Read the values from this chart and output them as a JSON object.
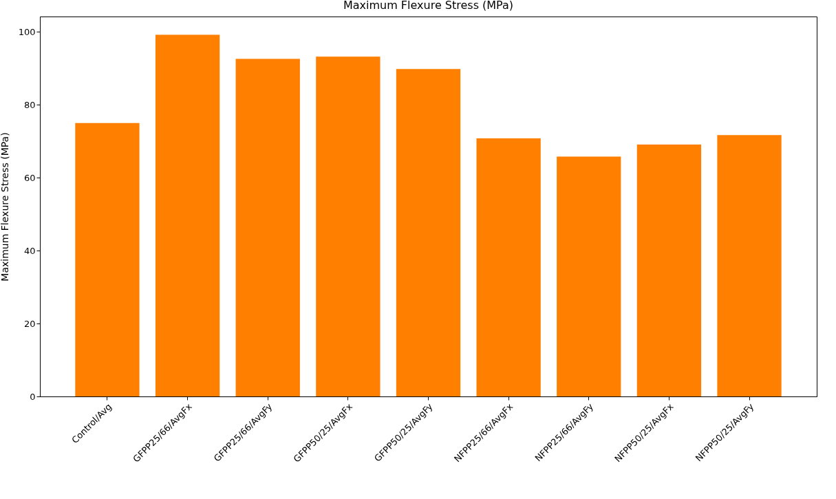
{
  "chart_data": {
    "type": "bar",
    "title": "Maximum Flexure Stress (MPa)",
    "ylabel": "Maximum Flexure Stress (MPa)",
    "categories": [
      "Control/Avg",
      "GFPP25/66/AvgFx",
      "GFPP25/66/AvgFy",
      "GFPP50/25/AvgFx",
      "GFPP50/25/AvgFy",
      "NFPP25/66/AvgFx",
      "NFPP25/66/AvgFy",
      "NFPP50/25/AvgFx",
      "NFPP50/25/AvgFy"
    ],
    "values": [
      75.0,
      99.2,
      92.6,
      93.2,
      89.8,
      70.8,
      65.8,
      69.1,
      71.7
    ],
    "color": "#ff8000",
    "ylim": [
      0,
      104.2
    ],
    "yticks": [
      0,
      20,
      40,
      60,
      80,
      100
    ],
    "grid": false
  }
}
